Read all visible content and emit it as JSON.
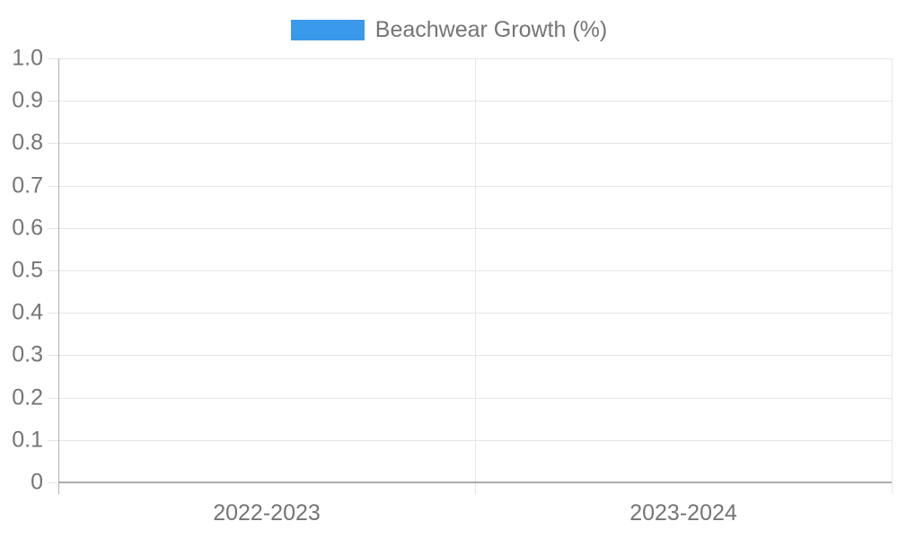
{
  "legend": {
    "label": "Beachwear Growth (%)"
  },
  "chart_data": {
    "type": "bar",
    "title": "Beachwear Growth (%)",
    "categories": [
      "2022-2023",
      "2023-2024"
    ],
    "series": [
      {
        "name": "Beachwear Growth (%)",
        "color": "#3b99ec",
        "values": [
          0,
          0
        ]
      }
    ],
    "xlabel": "",
    "ylabel": "",
    "ylim": [
      0,
      1
    ],
    "y_ticks": [
      0,
      0.1,
      0.2,
      0.3,
      0.4,
      0.5,
      0.6,
      0.7,
      0.8,
      0.9,
      1.0
    ],
    "y_tick_labels": [
      "0",
      "0.1",
      "0.2",
      "0.3",
      "0.4",
      "0.5",
      "0.6",
      "0.7",
      "0.8",
      "0.9",
      "1.0"
    ],
    "grid": true,
    "legend_position": "top center"
  },
  "colors": {
    "bar": "#3b99ec",
    "text": "#757575",
    "axis": "#b0b0b0",
    "baseline": "#ababab",
    "gridline": "#e6e6e6",
    "background": "#ffffff"
  }
}
